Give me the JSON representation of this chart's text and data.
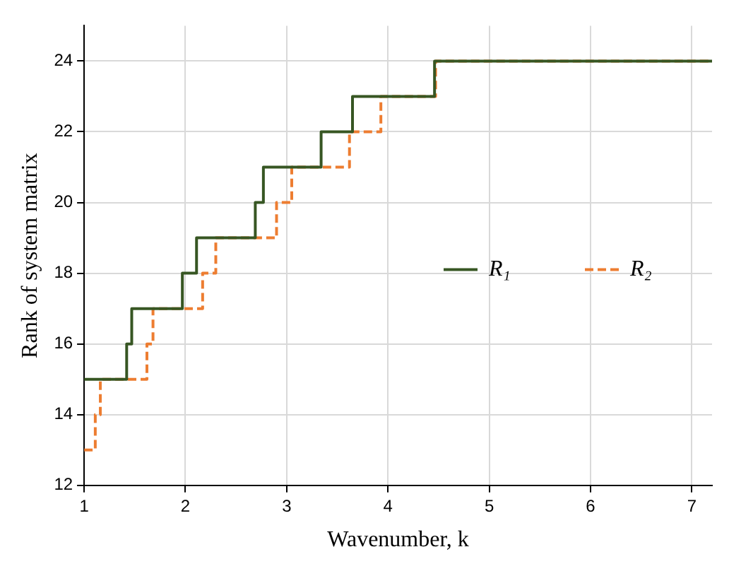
{
  "chart_data": {
    "type": "step",
    "xlabel": "Wavenumber, k",
    "ylabel": "Rank of system matrix",
    "xlim": [
      1,
      7.2
    ],
    "ylim": [
      12,
      25
    ],
    "xticks": [
      1,
      2,
      3,
      4,
      5,
      6,
      7
    ],
    "yticks": [
      12,
      14,
      16,
      18,
      20,
      22,
      24
    ],
    "grid": true,
    "legend": "right",
    "series": [
      {
        "name": "R₁",
        "color": "#375623",
        "line_style": "solid",
        "x": [
          1,
          1.42,
          1.47,
          1.97,
          2.11,
          2.69,
          2.77,
          3.34,
          3.65,
          4.46,
          7.2
        ],
        "values": [
          15,
          16,
          17,
          18,
          19,
          20,
          21,
          22,
          23,
          24,
          24
        ]
      },
      {
        "name": "R₂",
        "color": "#ed7d31",
        "line_style": "dashed",
        "x": [
          1,
          1.11,
          1.16,
          1.62,
          1.68,
          2.17,
          2.3,
          2.9,
          3.05,
          3.62,
          3.93,
          4.47,
          7.2
        ],
        "values": [
          13,
          14,
          15,
          16,
          17,
          18,
          19,
          20,
          21,
          22,
          23,
          24,
          24
        ]
      }
    ]
  }
}
